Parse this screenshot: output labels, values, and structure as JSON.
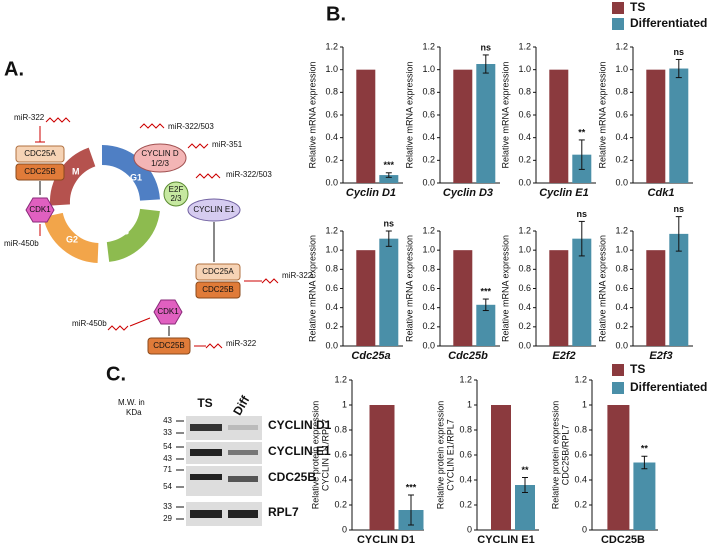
{
  "panel_labels": [
    "A.",
    "B.",
    "C."
  ],
  "diagram": {
    "texts": [
      "miR-322",
      "CDC25A",
      "CDC25B",
      "CDK1",
      "miR-450b",
      "M",
      "G1",
      "S",
      "G2",
      "miR-322/503",
      "CYCLIN D",
      "1/2/3",
      "miR-351",
      "E2F",
      "2/3",
      "miR-322/503",
      "CYCLIN E1",
      "CDC25A",
      "CDC25B",
      "miR-322",
      "CDK1",
      "miR-450b",
      "CDC25B",
      "miR-322"
    ]
  },
  "blot": {
    "mw_title": [
      "M.W. in",
      "KDa"
    ],
    "lanes": [
      "TS",
      "Diff"
    ],
    "mw": [
      "43",
      "33",
      "54",
      "43",
      "71",
      "54",
      "33",
      "29"
    ],
    "proteins": [
      "CYCLIN D1",
      "CYCLIN E1",
      "CDC25B",
      "RPL7"
    ]
  },
  "chart_data": [
    {
      "type": "bar",
      "xlabel": "Cyclin D1",
      "ylabel": [
        "Relative mRNA expression"
      ],
      "ylim": [
        0,
        1.2
      ],
      "yticks": [
        {
          "value": 0,
          "label": "0.0"
        },
        0.2,
        0.4,
        0.6,
        0.8,
        {
          "value": 1,
          "label": "1.0"
        },
        1.2
      ],
      "annotation": "***",
      "series": [
        {
          "name": "TS",
          "color": "#8b3a3e",
          "values": [
            1.0
          ]
        },
        {
          "name": "Differentiated",
          "color": "#4a8fa8",
          "values": [
            0.07
          ],
          "errors": [
            0.02
          ]
        }
      ]
    },
    {
      "type": "bar",
      "xlabel": "Cyclin D3",
      "ylabel": [
        "Relative mRNA expression"
      ],
      "ylim": [
        0,
        1.2
      ],
      "yticks": [
        {
          "value": 0,
          "label": "0.0"
        },
        0.2,
        0.4,
        0.6,
        0.8,
        {
          "value": 1,
          "label": "1.0"
        },
        1.2
      ],
      "annotation": "ns",
      "series": [
        {
          "name": "TS",
          "color": "#8b3a3e",
          "values": [
            1.0
          ]
        },
        {
          "name": "Differentiated",
          "color": "#4a8fa8",
          "values": [
            1.05
          ],
          "errors": [
            0.08
          ]
        }
      ]
    },
    {
      "type": "bar",
      "xlabel": "Cyclin E1",
      "ylabel": [
        "Relative mRNA expression"
      ],
      "ylim": [
        0,
        1.2
      ],
      "yticks": [
        {
          "value": 0,
          "label": "0.0"
        },
        0.2,
        0.4,
        0.6,
        0.8,
        {
          "value": 1,
          "label": "1.0"
        },
        1.2
      ],
      "annotation": "**",
      "series": [
        {
          "name": "TS",
          "color": "#8b3a3e",
          "values": [
            1.0
          ]
        },
        {
          "name": "Differentiated",
          "color": "#4a8fa8",
          "values": [
            0.25
          ],
          "errors": [
            0.13
          ]
        }
      ]
    },
    {
      "type": "bar",
      "xlabel": "Cdk1",
      "ylabel": [
        "Relative mRNA expression"
      ],
      "ylim": [
        0,
        1.2
      ],
      "yticks": [
        {
          "value": 0,
          "label": "0.0"
        },
        0.2,
        0.4,
        0.6,
        0.8,
        {
          "value": 1,
          "label": "1.0"
        },
        1.2
      ],
      "annotation": "ns",
      "series": [
        {
          "name": "TS",
          "color": "#8b3a3e",
          "values": [
            1.0
          ]
        },
        {
          "name": "Differentiated",
          "color": "#4a8fa8",
          "values": [
            1.01
          ],
          "errors": [
            0.08
          ]
        }
      ]
    },
    {
      "type": "bar",
      "xlabel": "Cdc25a",
      "ylabel": [
        "Relative mRNA expression"
      ],
      "ylim": [
        0,
        1.2
      ],
      "yticks": [
        {
          "value": 0,
          "label": "0.0"
        },
        0.2,
        0.4,
        0.6,
        0.8,
        {
          "value": 1,
          "label": "1.0"
        },
        1.2
      ],
      "annotation": "ns",
      "series": [
        {
          "name": "TS",
          "color": "#8b3a3e",
          "values": [
            1.0
          ]
        },
        {
          "name": "Differentiated",
          "color": "#4a8fa8",
          "values": [
            1.12
          ],
          "errors": [
            0.08
          ]
        }
      ]
    },
    {
      "type": "bar",
      "xlabel": "Cdc25b",
      "ylabel": [
        "Relative mRNA expression"
      ],
      "ylim": [
        0,
        1.2
      ],
      "yticks": [
        {
          "value": 0,
          "label": "0.0"
        },
        0.2,
        0.4,
        0.6,
        0.8,
        {
          "value": 1,
          "label": "1.0"
        },
        1.2
      ],
      "annotation": "***",
      "series": [
        {
          "name": "TS",
          "color": "#8b3a3e",
          "values": [
            1.0
          ]
        },
        {
          "name": "Differentiated",
          "color": "#4a8fa8",
          "values": [
            0.43
          ],
          "errors": [
            0.06
          ]
        }
      ]
    },
    {
      "type": "bar",
      "xlabel": "E2f2",
      "ylabel": [
        "Relative mRNA expression"
      ],
      "ylim": [
        0,
        1.2
      ],
      "yticks": [
        {
          "value": 0,
          "label": "0.0"
        },
        0.2,
        0.4,
        0.6,
        0.8,
        {
          "value": 1,
          "label": "1.0"
        },
        1.2
      ],
      "annotation": "ns",
      "series": [
        {
          "name": "TS",
          "color": "#8b3a3e",
          "values": [
            1.0
          ]
        },
        {
          "name": "Differentiated",
          "color": "#4a8fa8",
          "values": [
            1.12
          ],
          "errors": [
            0.18
          ]
        }
      ]
    },
    {
      "type": "bar",
      "xlabel": "E2f3",
      "ylabel": [
        "Relative mRNA expression"
      ],
      "ylim": [
        0,
        1.2
      ],
      "yticks": [
        {
          "value": 0,
          "label": "0.0"
        },
        0.2,
        0.4,
        0.6,
        0.8,
        {
          "value": 1,
          "label": "1.0"
        },
        1.2
      ],
      "annotation": "ns",
      "series": [
        {
          "name": "TS",
          "color": "#8b3a3e",
          "values": [
            1.0
          ]
        },
        {
          "name": "Differentiated",
          "color": "#4a8fa8",
          "values": [
            1.17
          ],
          "errors": [
            0.18
          ]
        }
      ]
    },
    {
      "type": "bar",
      "xlabel": "CYCLIN D1",
      "ylabel": [
        "Relative protein expression",
        "CYCLIN D1/RPL7"
      ],
      "ylim": [
        0,
        1.2
      ],
      "yticks": [
        0,
        0.2,
        0.4,
        0.6,
        0.8,
        1,
        1.2
      ],
      "annotation": "***",
      "series": [
        {
          "name": "TS",
          "color": "#8b3a3e",
          "values": [
            1
          ]
        },
        {
          "name": "Differentiated",
          "color": "#4a8fa8",
          "values": [
            0.16
          ],
          "errors": [
            0.12
          ]
        }
      ]
    },
    {
      "type": "bar",
      "xlabel": "CYCLIN E1",
      "ylabel": [
        "Relative protein expression",
        "CYCLIN E1/RPL7"
      ],
      "ylim": [
        0,
        1.2
      ],
      "yticks": [
        0,
        0.2,
        0.4,
        0.6,
        0.8,
        1,
        1.2
      ],
      "annotation": "**",
      "series": [
        {
          "name": "TS",
          "color": "#8b3a3e",
          "values": [
            1
          ]
        },
        {
          "name": "Differentiated",
          "color": "#4a8fa8",
          "values": [
            0.36
          ],
          "errors": [
            0.06
          ]
        }
      ]
    },
    {
      "type": "bar",
      "xlabel": "CDC25B",
      "ylabel": [
        "Relative protein expression",
        "CDC25B/RPL7"
      ],
      "ylim": [
        0,
        1.2
      ],
      "yticks": [
        0,
        0.2,
        0.4,
        0.6,
        0.8,
        1,
        1.2
      ],
      "annotation": "**",
      "series": [
        {
          "name": "TS",
          "color": "#8b3a3e",
          "values": [
            1
          ]
        },
        {
          "name": "Differentiated",
          "color": "#4a8fa8",
          "values": [
            0.54
          ],
          "errors": [
            0.05
          ]
        }
      ]
    }
  ]
}
